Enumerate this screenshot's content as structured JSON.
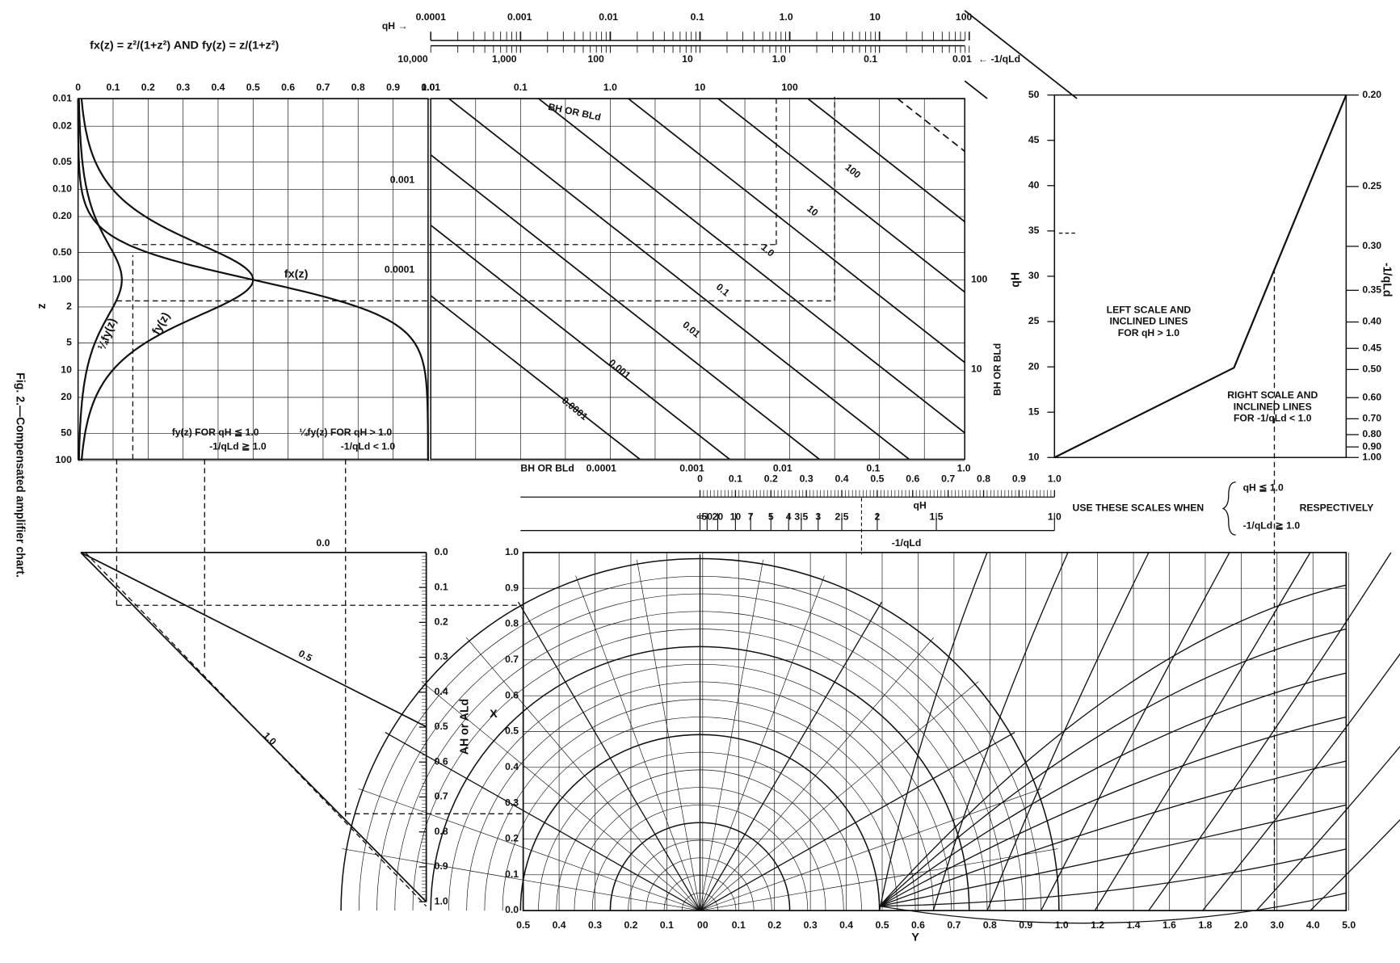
{
  "caption": "Fig. 2.—Compensated amplifier chart.",
  "formula": "fx(z) = z²/(1+z²)   AND   fy(z) = z/(1+z²)",
  "top_scale": {
    "top_label": "qH →",
    "top_ticks": [
      "0.0001",
      "0.001",
      "0.01",
      "0.1",
      "1.0",
      "10",
      "100"
    ],
    "bottom_ticks": [
      "10,000",
      "1,000",
      "100",
      "10",
      "1.0",
      "0.1",
      "0.01"
    ],
    "bottom_label": "← -1/qLd"
  },
  "f_panel": {
    "x_ticks": [
      "0",
      "0.1",
      "0.2",
      "0.3",
      "0.4",
      "0.5",
      "0.6",
      "0.7",
      "0.8",
      "0.9",
      "1.0"
    ],
    "z_ticks": [
      "0.01",
      "0.02",
      "0.05",
      "0.10",
      "0.20",
      "0.50",
      "1.00",
      "2",
      "5",
      "10",
      "20",
      "50",
      "100"
    ],
    "z_label": "z",
    "curve_labels": [
      "fx(z)",
      "fy(z)",
      "¼fy(z)"
    ],
    "note_left": [
      "fy(z) FOR qH ≦ 1.0",
      "-1/qLd ≧ 1.0"
    ],
    "note_right": [
      "¼fy(z) FOR qH > 1.0",
      "-1/qLd < 1.0"
    ]
  },
  "b_panel": {
    "top_ticks": [
      "0.01",
      "0.1",
      "1.0",
      "10",
      "100"
    ],
    "axis_label": "BH OR BLd",
    "left_ticks": [
      "0.001",
      "0.0001"
    ],
    "line_labels": [
      "100",
      "10",
      "1.0",
      "0.1",
      "0.01",
      "0.001",
      "0.0001"
    ],
    "bottom_label": "BH OR BLd",
    "bottom_ticks": [
      "0.0001",
      "0.001",
      "0.01",
      "0.1",
      "1.0"
    ],
    "right_ticks": [
      "100",
      "10"
    ],
    "right_label": "BH OR BLd"
  },
  "q_panel": {
    "left_label": "qH",
    "left_ticks": [
      "10",
      "15",
      "20",
      "25",
      "30",
      "35",
      "40",
      "45",
      "50"
    ],
    "right_label": "-1/qLd",
    "right_ticks": [
      "0.20",
      "0.25",
      "0.30",
      "0.35",
      "0.40",
      "0.45",
      "0.50",
      "0.60",
      "0.70",
      "0.80",
      "0.90",
      "1.00"
    ],
    "note_left": [
      "LEFT SCALE AND",
      "INCLINED LINES",
      "FOR qH > 1.0"
    ],
    "note_right": [
      "RIGHT SCALE AND",
      "INCLINED LINES",
      "FOR -1/qLd < 1.0"
    ]
  },
  "mid_scale": {
    "top_ticks": [
      "0",
      "0.1",
      "0.2",
      "0.3",
      "0.4",
      "0.5",
      "0.6",
      "0.7",
      "0.8",
      "0.9",
      "1.0"
    ],
    "top_label": "qH",
    "bottom_ticks": [
      "∞",
      "50",
      "20",
      "10",
      "7",
      "5",
      "4",
      "3.5",
      "3",
      "2.5",
      "2",
      "1.5",
      "1.0"
    ],
    "bottom_label": "-1/qLd",
    "note": "USE THESE SCALES WHEN",
    "conditions": [
      "qH ≦ 1.0",
      "-1/qLd ≧ 1.0"
    ],
    "respectively": "RESPECTIVELY"
  },
  "a_panel": {
    "ticks": [
      "0.0",
      "0.1",
      "0.2",
      "0.3",
      "0.4",
      "0.5",
      "0.6",
      "0.7",
      "0.8",
      "0.9",
      "1.0"
    ],
    "label": "AH or ALd",
    "line_labels": [
      "0.0",
      "0.5",
      "1.0"
    ]
  },
  "xy_panel": {
    "y_label": "X",
    "y_ticks": [
      "0.0",
      "0.1",
      "0.2",
      "0.3",
      "0.4",
      "0.5",
      "0.6",
      "0.7",
      "0.8",
      "0.9",
      "1.0"
    ],
    "x_label": "Y",
    "x_ticks": [
      "0.5",
      "0.4",
      "0.3",
      "0.2",
      "0.1",
      "00",
      "0.1",
      "0.2",
      "0.3",
      "0.4",
      "0.5",
      "0.6",
      "0.7",
      "0.8",
      "0.9",
      "1.0",
      "1.2",
      "1.4",
      "1.6",
      "1.8",
      "2.0",
      "3.0",
      "4.0",
      "5.0"
    ]
  }
}
